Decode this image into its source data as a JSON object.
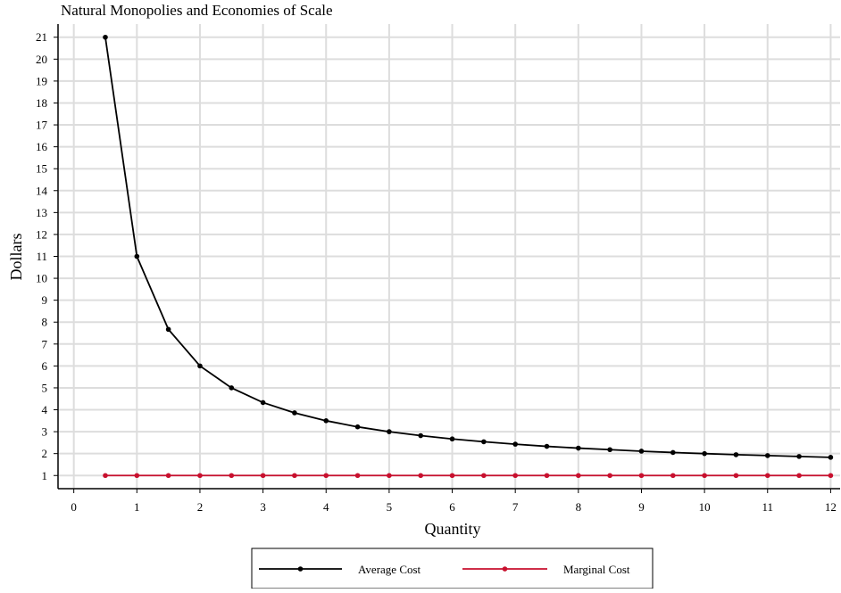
{
  "chart_data": {
    "type": "line",
    "title": "Natural Monopolies and Economies of Scale",
    "xlabel": "Quantity",
    "ylabel": "Dollars",
    "xlim": [
      -0.25,
      12.15
    ],
    "ylim": [
      0.4,
      21.6
    ],
    "x_ticks": [
      "0",
      "1",
      "2",
      "3",
      "4",
      "5",
      "6",
      "7",
      "8",
      "9",
      "10",
      "11",
      "12"
    ],
    "y_ticks": [
      "1",
      "2",
      "3",
      "4",
      "5",
      "6",
      "7",
      "8",
      "9",
      "10",
      "11",
      "12",
      "13",
      "14",
      "15",
      "16",
      "17",
      "18",
      "19",
      "20",
      "21"
    ],
    "grid": true,
    "legend_position": "bottom",
    "x": [
      0.5,
      1,
      1.5,
      2,
      2.5,
      3,
      3.5,
      4,
      4.5,
      5,
      5.5,
      6,
      6.5,
      7,
      7.5,
      8,
      8.5,
      9,
      9.5,
      10,
      10.5,
      11,
      11.5,
      12
    ],
    "series": [
      {
        "name": "Average Cost",
        "color": "#000000",
        "values": [
          21,
          11,
          7.67,
          6,
          5,
          4.33,
          3.86,
          3.5,
          3.22,
          3,
          2.82,
          2.67,
          2.54,
          2.43,
          2.33,
          2.25,
          2.18,
          2.11,
          2.05,
          2,
          1.95,
          1.91,
          1.87,
          1.83
        ]
      },
      {
        "name": "Marginal Cost",
        "color": "#c8102e",
        "values": [
          1,
          1,
          1,
          1,
          1,
          1,
          1,
          1,
          1,
          1,
          1,
          1,
          1,
          1,
          1,
          1,
          1,
          1,
          1,
          1,
          1,
          1,
          1,
          1
        ]
      }
    ]
  }
}
